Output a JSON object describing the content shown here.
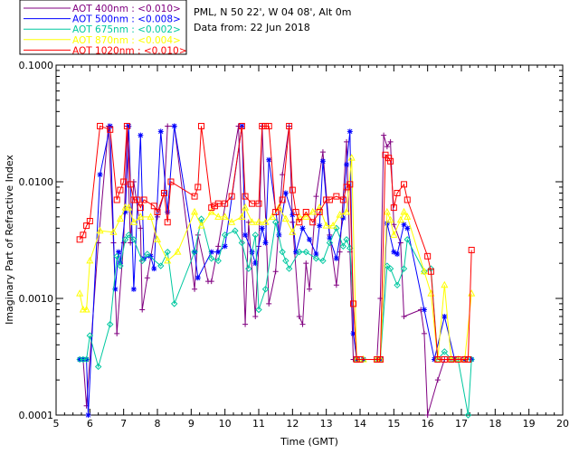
{
  "site_info": "PML, N 50 22', W 04 08', Alt 0m",
  "date_info": "Data from: 22 Jun 2018",
  "legend": [
    {
      "label": "AOT  400nm : <0.010>",
      "color": "#800080"
    },
    {
      "label": "AOT  500nm : <0.008>",
      "color": "#0000ff"
    },
    {
      "label": "AOT  675nm : <0.002>",
      "color": "#00c8a0"
    },
    {
      "label": "AOT  870nm : <0.004>",
      "color": "#ffff00"
    },
    {
      "label": "AOT 1020nm : <0.010>",
      "color": "#ff0000"
    }
  ],
  "chart_data": {
    "type": "line",
    "title": "",
    "xlabel": "Time (GMT)",
    "ylabel": "Imaginary Part of Refractive Index",
    "xlim": [
      5,
      20
    ],
    "ylim": [
      0.0001,
      0.1
    ],
    "yscale": "log",
    "x_ticks": [
      "5",
      "6",
      "7",
      "8",
      "9",
      "10",
      "11",
      "12",
      "13",
      "14",
      "15",
      "16",
      "17",
      "18",
      "19",
      "20"
    ],
    "y_ticks": [
      "0.0001",
      "0.0010",
      "0.0100",
      "0.1000"
    ],
    "series": [
      {
        "name": "AOT 400nm",
        "color": "#800080",
        "marker": "plus",
        "x": [
          5.8,
          5.9,
          6.25,
          6.55,
          6.7,
          6.8,
          7.0,
          7.1,
          7.2,
          7.3,
          7.5,
          7.55,
          7.7,
          8.0,
          8.2,
          8.3,
          8.5,
          9.1,
          9.2,
          9.5,
          9.6,
          9.8,
          10.4,
          10.6,
          10.7,
          10.9,
          11.0,
          11.1,
          11.3,
          11.5,
          11.7,
          11.9,
          12.0,
          12.2,
          12.3,
          12.4,
          12.5,
          12.7,
          12.9,
          13.1,
          13.3,
          13.4,
          13.6,
          13.7,
          13.8,
          13.9,
          14.1,
          14.5,
          14.6,
          14.7,
          14.8,
          14.9,
          15.0,
          15.2,
          15.3,
          15.8,
          15.9,
          16.0,
          16.3,
          16.5,
          16.7,
          16.9,
          17.1,
          17.3
        ],
        "y": [
          0.0003,
          0.00012,
          0.003,
          0.03,
          0.003,
          0.0005,
          0.003,
          0.03,
          0.003,
          0.01,
          0.004,
          0.0008,
          0.0015,
          0.005,
          0.008,
          0.03,
          0.03,
          0.0012,
          0.0035,
          0.0014,
          0.0014,
          0.0028,
          0.03,
          0.0006,
          0.0045,
          0.0007,
          0.0028,
          0.03,
          0.0009,
          0.0017,
          0.0115,
          0.03,
          0.0045,
          0.0007,
          0.0006,
          0.002,
          0.0012,
          0.0075,
          0.018,
          0.0035,
          0.0013,
          0.0025,
          0.022,
          0.0025,
          0.0003,
          0.0003,
          0.0003,
          0.0003,
          0.001,
          0.025,
          0.02,
          0.022,
          0.0043,
          0.003,
          0.0007,
          0.0008,
          0.0005,
          7e-05,
          0.0002,
          0.0003,
          0.0003,
          0.0003,
          0.0003,
          0.0003
        ]
      },
      {
        "name": "AOT 500nm",
        "color": "#0000ff",
        "marker": "asterisk",
        "x": [
          5.7,
          5.8,
          5.9,
          5.95,
          6.3,
          6.6,
          6.75,
          6.85,
          6.9,
          7.05,
          7.15,
          7.3,
          7.5,
          7.6,
          7.8,
          7.9,
          8.1,
          8.3,
          8.5,
          9.1,
          9.2,
          9.6,
          9.8,
          10.0,
          10.5,
          10.6,
          10.8,
          10.9,
          11.1,
          11.2,
          11.3,
          11.6,
          11.8,
          12.0,
          12.1,
          12.3,
          12.5,
          12.7,
          12.8,
          12.9,
          13.1,
          13.3,
          13.5,
          13.6,
          13.7,
          13.8,
          13.9,
          14.1,
          14.6,
          14.8,
          15.0,
          15.1,
          15.3,
          15.4,
          15.9,
          16.2,
          16.5,
          16.8,
          17.1,
          17.3
        ],
        "y": [
          0.0003,
          0.0003,
          0.0003,
          9e-05,
          0.0115,
          0.03,
          0.0012,
          0.0025,
          0.002,
          0.0055,
          0.03,
          0.0012,
          0.025,
          0.0022,
          0.0023,
          0.0018,
          0.027,
          0.0055,
          0.03,
          0.0025,
          0.0015,
          0.0025,
          0.0025,
          0.0028,
          0.03,
          0.0035,
          0.0025,
          0.002,
          0.004,
          0.003,
          0.0154,
          0.0035,
          0.008,
          0.0052,
          0.0025,
          0.004,
          0.0032,
          0.0024,
          0.0042,
          0.015,
          0.0033,
          0.0022,
          0.0049,
          0.014,
          0.027,
          0.0005,
          0.0003,
          0.0003,
          0.0003,
          0.0044,
          0.0025,
          0.0024,
          0.0043,
          0.004,
          0.0008,
          0.0003,
          0.0007,
          0.0003,
          0.0003,
          0.0003
        ]
      },
      {
        "name": "AOT 675nm",
        "color": "#00c8a0",
        "marker": "diamond",
        "x": [
          5.7,
          5.8,
          5.9,
          6.0,
          6.25,
          6.6,
          6.8,
          6.9,
          7.05,
          7.15,
          7.3,
          7.55,
          7.7,
          8.1,
          8.3,
          8.5,
          9.1,
          9.3,
          9.6,
          9.8,
          10.0,
          10.3,
          10.5,
          10.7,
          10.9,
          11.0,
          11.2,
          11.5,
          11.7,
          11.8,
          11.9,
          12.2,
          12.4,
          12.7,
          12.9,
          13.1,
          13.3,
          13.5,
          13.6,
          13.7,
          13.9,
          14.1,
          14.5,
          14.6,
          14.8,
          14.9,
          15.1,
          15.3,
          15.4,
          15.9,
          16.1,
          16.3,
          16.5,
          16.7,
          16.9,
          17.2,
          17.3
        ],
        "y": [
          0.0003,
          0.0003,
          0.0003,
          0.00048,
          0.00026,
          0.0006,
          0.0023,
          0.0019,
          0.0032,
          0.0035,
          0.0032,
          0.0021,
          0.0024,
          0.0019,
          0.0025,
          0.0009,
          0.0025,
          0.0048,
          0.0022,
          0.0021,
          0.0035,
          0.0038,
          0.003,
          0.0018,
          0.0035,
          0.0008,
          0.0012,
          0.0045,
          0.0025,
          0.0021,
          0.0018,
          0.0025,
          0.0025,
          0.0022,
          0.0021,
          0.003,
          0.004,
          0.0028,
          0.0032,
          0.0027,
          0.0003,
          0.0003,
          0.0003,
          0.0003,
          0.0019,
          0.0018,
          0.0013,
          0.0018,
          0.0032,
          0.0017,
          0.0018,
          0.0003,
          0.00035,
          0.0003,
          0.0003,
          8e-05,
          0.0003
        ]
      },
      {
        "name": "AOT 870nm",
        "color": "#ffff00",
        "marker": "triangle",
        "x": [
          5.7,
          5.8,
          5.9,
          6.0,
          6.3,
          6.7,
          6.9,
          7.05,
          7.15,
          7.3,
          7.5,
          7.8,
          8.0,
          8.3,
          8.6,
          9.1,
          9.3,
          9.6,
          9.8,
          10.0,
          10.2,
          10.5,
          10.6,
          10.8,
          11.0,
          11.2,
          11.4,
          11.6,
          11.8,
          12.0,
          12.2,
          12.4,
          12.6,
          12.8,
          13.0,
          13.2,
          13.4,
          13.6,
          13.75,
          13.9,
          14.1,
          14.5,
          14.6,
          14.8,
          14.9,
          15.0,
          15.2,
          15.3,
          15.4,
          15.9,
          16.1,
          16.3,
          16.5,
          16.7,
          16.9,
          17.1,
          17.3
        ],
        "y": [
          0.0011,
          0.0008,
          0.0008,
          0.0021,
          0.0038,
          0.0037,
          0.0048,
          0.006,
          0.006,
          0.0045,
          0.005,
          0.005,
          0.0032,
          0.0021,
          0.0025,
          0.0055,
          0.0042,
          0.0055,
          0.005,
          0.005,
          0.0045,
          0.005,
          0.006,
          0.0045,
          0.0045,
          0.0045,
          0.005,
          0.006,
          0.0048,
          0.0037,
          0.005,
          0.005,
          0.0055,
          0.006,
          0.0042,
          0.0042,
          0.0052,
          0.0055,
          0.016,
          0.0003,
          0.0003,
          0.0003,
          0.0003,
          0.0055,
          0.0047,
          0.0035,
          0.0047,
          0.0055,
          0.005,
          0.0017,
          0.0011,
          0.0003,
          0.0013,
          0.0003,
          0.0003,
          0.0003,
          0.0011
        ]
      },
      {
        "name": "AOT 1020nm",
        "color": "#ff0000",
        "marker": "square",
        "x": [
          5.7,
          5.8,
          5.9,
          6.0,
          6.3,
          6.6,
          6.8,
          6.9,
          7.0,
          7.1,
          7.2,
          7.3,
          7.4,
          7.5,
          7.6,
          7.9,
          8.0,
          8.2,
          8.3,
          8.4,
          9.1,
          9.2,
          9.3,
          9.6,
          9.7,
          9.8,
          10.0,
          10.2,
          10.5,
          10.6,
          10.8,
          11.0,
          11.1,
          11.2,
          11.3,
          11.5,
          11.7,
          11.9,
          12.0,
          12.1,
          12.2,
          12.4,
          12.6,
          12.8,
          13.0,
          13.1,
          13.3,
          13.5,
          13.6,
          13.7,
          13.8,
          13.9,
          14.0,
          14.5,
          14.6,
          14.75,
          14.85,
          14.9,
          15.0,
          15.1,
          15.3,
          15.4,
          16.0,
          16.1,
          16.3,
          16.5,
          16.7,
          16.9,
          17.1,
          17.2,
          17.3
        ],
        "y": [
          0.0032,
          0.0035,
          0.0042,
          0.0046,
          0.03,
          0.028,
          0.007,
          0.0085,
          0.01,
          0.03,
          0.0095,
          0.007,
          0.007,
          0.006,
          0.007,
          0.0062,
          0.0055,
          0.008,
          0.0045,
          0.01,
          0.0075,
          0.009,
          0.03,
          0.006,
          0.0062,
          0.0065,
          0.0065,
          0.0075,
          0.03,
          0.0075,
          0.0065,
          0.0065,
          0.03,
          0.03,
          0.03,
          0.0055,
          0.007,
          0.03,
          0.0085,
          0.0055,
          0.0045,
          0.0055,
          0.0045,
          0.0055,
          0.007,
          0.007,
          0.0075,
          0.007,
          0.009,
          0.0095,
          0.0009,
          0.0003,
          0.0003,
          0.0003,
          0.0003,
          0.017,
          0.016,
          0.015,
          0.006,
          0.008,
          0.0095,
          0.007,
          0.0023,
          0.0017,
          0.0003,
          0.0003,
          0.0003,
          0.0003,
          0.0003,
          0.0003,
          0.0026
        ]
      }
    ]
  }
}
